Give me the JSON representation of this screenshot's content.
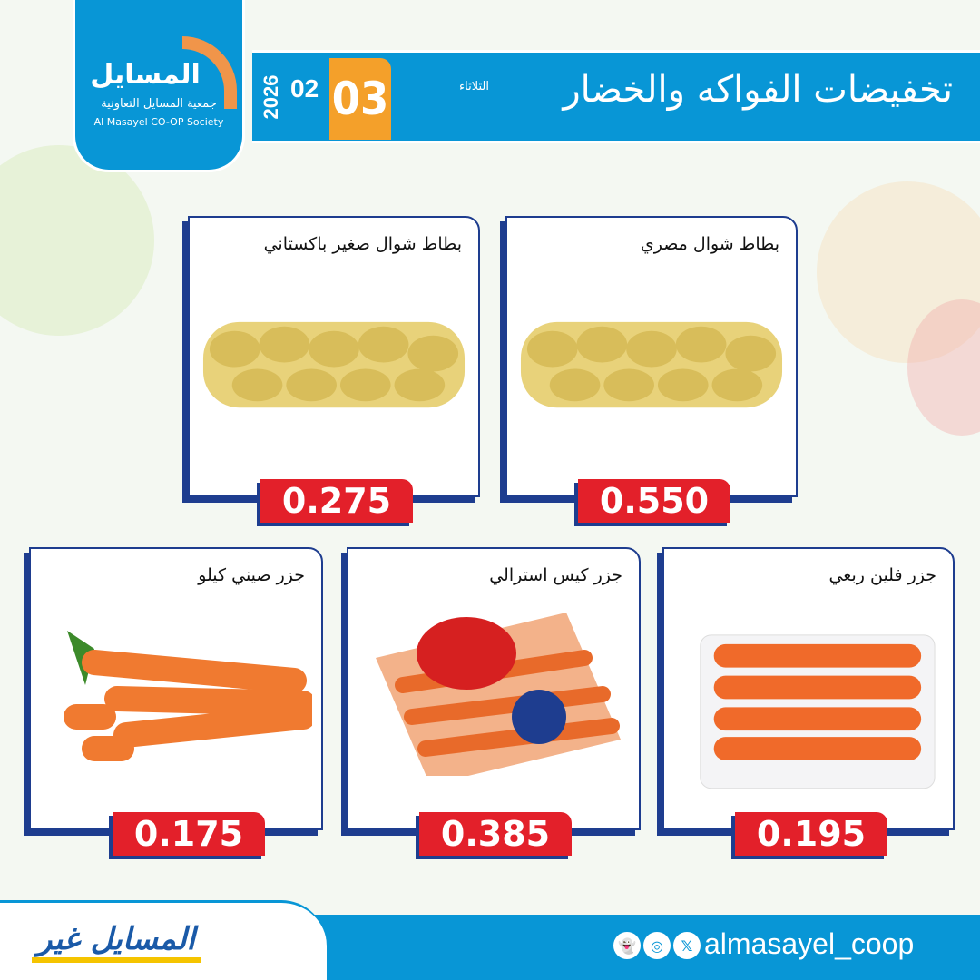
{
  "header": {
    "title": "تخفيضات الفواكه والخضار",
    "day": "الثلاثاء",
    "date_day": "03",
    "date_month": "02",
    "date_year": "2026"
  },
  "logo": {
    "name_ar": "المسايل",
    "subtitle_ar": "جمعية المسايل التعاونية",
    "name_en": "Al Masayel CO-OP Society"
  },
  "products": [
    {
      "name": "بطاط شوال مصري",
      "price": "0.550",
      "image": "potato-sack"
    },
    {
      "name": "بطاط شوال  صغير باكستاني",
      "price": "0.275",
      "image": "potato-sack"
    },
    {
      "name": "جزر فلين ربعي",
      "price": "0.195",
      "image": "carrots-foam-box"
    },
    {
      "name": "جزر كيس استرالي",
      "price": "0.385",
      "image": "carrots-bag"
    },
    {
      "name": "جزر صيني كيلو",
      "price": "0.175",
      "image": "carrots"
    }
  ],
  "footer": {
    "slogan": "المسايل غير",
    "handle": "almasayel_coop",
    "social_icons": [
      "snapchat-icon",
      "instagram-icon",
      "x-icon"
    ]
  },
  "colors": {
    "brand_blue": "#0896d6",
    "accent_orange": "#f4a02a",
    "price_red": "#e3202a",
    "border_navy": "#1e3d8f"
  }
}
